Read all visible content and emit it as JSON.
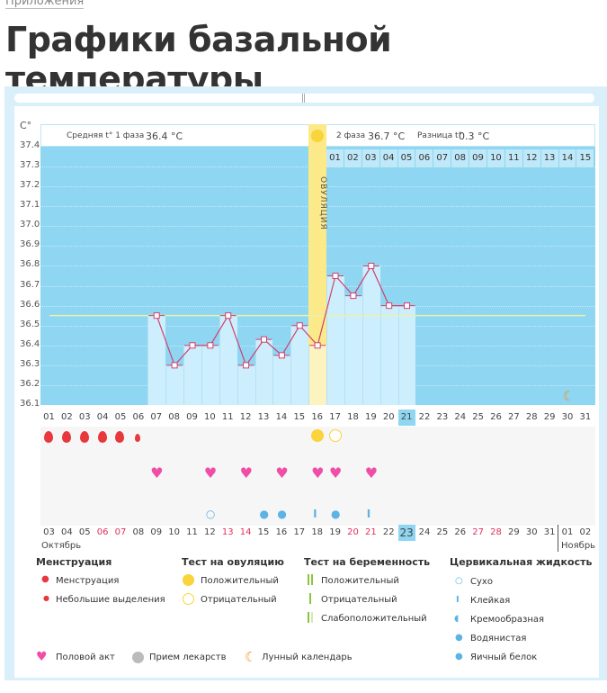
{
  "breadcrumb": "Приложения",
  "title": "Графики базальной температуры",
  "chart": {
    "unit": "C°",
    "y_ticks": [
      "37.4",
      "37.3",
      "37.2",
      "37.1",
      "37.0",
      "36.9",
      "36.8",
      "36.7",
      "36.6",
      "36.5",
      "36.4",
      "36.3",
      "36.2",
      "36.1"
    ],
    "phase1_label": "Средняя t° 1 фаза",
    "phase1_value": "36.4 °C",
    "phase2_label": "2 фаза",
    "phase2_value": "36.7 °C",
    "diff_label": "Разница t°",
    "diff_value": "0.3 °C",
    "ovulation_label": "ОВУЛЯЦИЯ",
    "phase2_days": [
      "01",
      "02",
      "03",
      "04",
      "05",
      "06",
      "07",
      "08",
      "09",
      "10",
      "11",
      "12",
      "13",
      "14",
      "15"
    ],
    "cycle_days": [
      "01",
      "02",
      "03",
      "04",
      "05",
      "06",
      "07",
      "08",
      "09",
      "10",
      "11",
      "12",
      "13",
      "14",
      "15",
      "16",
      "17",
      "18",
      "19",
      "20",
      "21",
      "22",
      "23",
      "24",
      "25",
      "26",
      "27",
      "28",
      "29",
      "30",
      "31"
    ],
    "current_cycle_day": "21",
    "coverline": 36.55,
    "temperatures": [
      null,
      null,
      null,
      null,
      null,
      null,
      36.55,
      36.3,
      36.4,
      36.4,
      36.55,
      36.3,
      36.43,
      36.35,
      36.5,
      36.4,
      36.75,
      36.65,
      36.8,
      36.6,
      36.6
    ],
    "ovulation_day": 16,
    "menstruation": [
      "heavy",
      "heavy",
      "heavy",
      "heavy",
      "heavy",
      "light"
    ],
    "ovulation_tests": {
      "16": "positive",
      "17": "negative"
    },
    "intercourse_days": [
      7,
      10,
      12,
      14,
      16,
      17,
      19
    ],
    "cervical_fluid": {
      "10": "dry",
      "13": "watery",
      "14": "watery",
      "16": "sticky",
      "17": "egg-white",
      "19": "sticky"
    },
    "dates": [
      "03",
      "04",
      "05",
      "06",
      "07",
      "08",
      "09",
      "10",
      "11",
      "12",
      "13",
      "14",
      "15",
      "16",
      "17",
      "18",
      "19",
      "20",
      "21",
      "22",
      "23",
      "24",
      "25",
      "26",
      "27",
      "28",
      "29",
      "30",
      "31",
      "01",
      "02"
    ],
    "weekend_dates": [
      "06",
      "07",
      "13",
      "14",
      "20",
      "21",
      "27",
      "28"
    ],
    "today_date": "23",
    "month1": "Октябрь",
    "month2": "Ноябрь"
  },
  "legend": {
    "menstruation": {
      "title": "Менструация",
      "items": [
        "Менструация",
        "Небольшие выделения"
      ]
    },
    "ovulation_test": {
      "title": "Тест на овуляцию",
      "items": [
        "Положительный",
        "Отрицательный"
      ]
    },
    "pregnancy_test": {
      "title": "Тест на беременность",
      "items": [
        "Положительный",
        "Отрицательный",
        "Слабоположительный"
      ]
    },
    "cervical": {
      "title": "Цервикальная жидкость",
      "items": [
        "Сухо",
        "Клейкая",
        "Кремообразная",
        "Водянистая",
        "Яичный белок"
      ]
    },
    "other": [
      "Половой акт",
      "Прием лекарств",
      "Лунный календарь"
    ]
  },
  "colors": {
    "plot": "#8fd6f2",
    "bar": "#cdeefc",
    "line": "#d0416f",
    "ovulation": "#fbe98a",
    "drop": "#e8383d",
    "heart": "#f04ea6",
    "fluid": "#5cb3e4",
    "sun": "#f9d43a",
    "moon": "#f0951f"
  }
}
